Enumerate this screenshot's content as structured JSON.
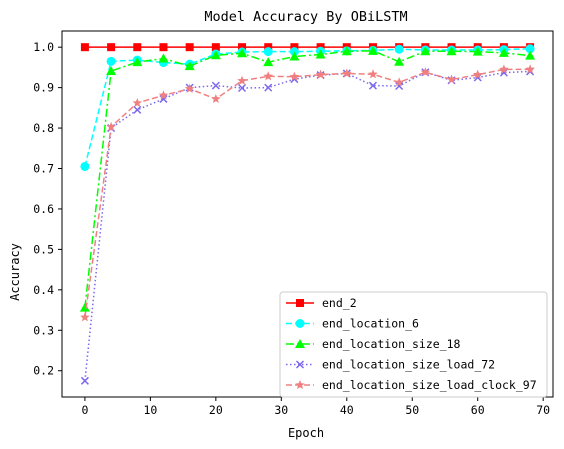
{
  "chart_data": {
    "type": "line",
    "title": "Model Accuracy By OBiLSTM",
    "xlabel": "Epoch",
    "ylabel": "Accuracy",
    "xlim": [
      -3.5,
      71.5
    ],
    "ylim": [
      0.135,
      1.04
    ],
    "xticks": [
      0,
      10,
      20,
      30,
      40,
      50,
      60,
      70
    ],
    "yticks": [
      0.2,
      0.3,
      0.4,
      0.5,
      0.6,
      0.7,
      0.8,
      0.9,
      1.0
    ],
    "ytick_labels": [
      "0.2",
      "0.3",
      "0.4",
      "0.5",
      "0.6",
      "0.7",
      "0.8",
      "0.9",
      "1.0"
    ],
    "legend_position": "lower-right",
    "x": [
      0,
      4,
      8,
      12,
      16,
      20,
      24,
      28,
      32,
      36,
      40,
      44,
      48,
      52,
      56,
      60,
      64,
      68
    ],
    "series": [
      {
        "name": "end_2",
        "color": "#ff0000",
        "marker": "square",
        "linestyle": "solid",
        "values": [
          1.0,
          1.0,
          1.0,
          1.0,
          1.0,
          1.0,
          1.0,
          1.0,
          1.0,
          1.0,
          1.0,
          1.0,
          1.0,
          1.0,
          1.0,
          1.0,
          1.0,
          1.0
        ]
      },
      {
        "name": "end_location_6",
        "color": "#00ffff",
        "marker": "circle",
        "linestyle": "dashed",
        "values": [
          0.705,
          0.965,
          0.968,
          0.962,
          0.958,
          0.983,
          0.988,
          0.989,
          0.989,
          0.99,
          0.991,
          0.992,
          0.995,
          0.993,
          0.993,
          0.993,
          0.994,
          0.996
        ]
      },
      {
        "name": "end_location_size_18",
        "color": "#00ff00",
        "marker": "triangle",
        "linestyle": "dashdot",
        "values": [
          0.356,
          0.941,
          0.963,
          0.972,
          0.953,
          0.98,
          0.985,
          0.963,
          0.977,
          0.982,
          0.99,
          0.991,
          0.964,
          0.99,
          0.99,
          0.989,
          0.986,
          0.979
        ]
      },
      {
        "name": "end_location_size_load_72",
        "color": "#7b68ee",
        "marker": "x",
        "linestyle": "dotted",
        "values": [
          0.175,
          0.8,
          0.845,
          0.872,
          0.9,
          0.905,
          0.899,
          0.9,
          0.921,
          0.931,
          0.935,
          0.905,
          0.904,
          0.938,
          0.918,
          0.925,
          0.937,
          0.94
        ]
      },
      {
        "name": "end_location_size_load_clock_97",
        "color": "#f08080",
        "marker": "star",
        "linestyle": "dashed",
        "values": [
          0.332,
          0.803,
          0.862,
          0.881,
          0.897,
          0.872,
          0.917,
          0.928,
          0.927,
          0.932,
          0.935,
          0.933,
          0.913,
          0.938,
          0.92,
          0.932,
          0.945,
          0.945
        ]
      }
    ]
  }
}
